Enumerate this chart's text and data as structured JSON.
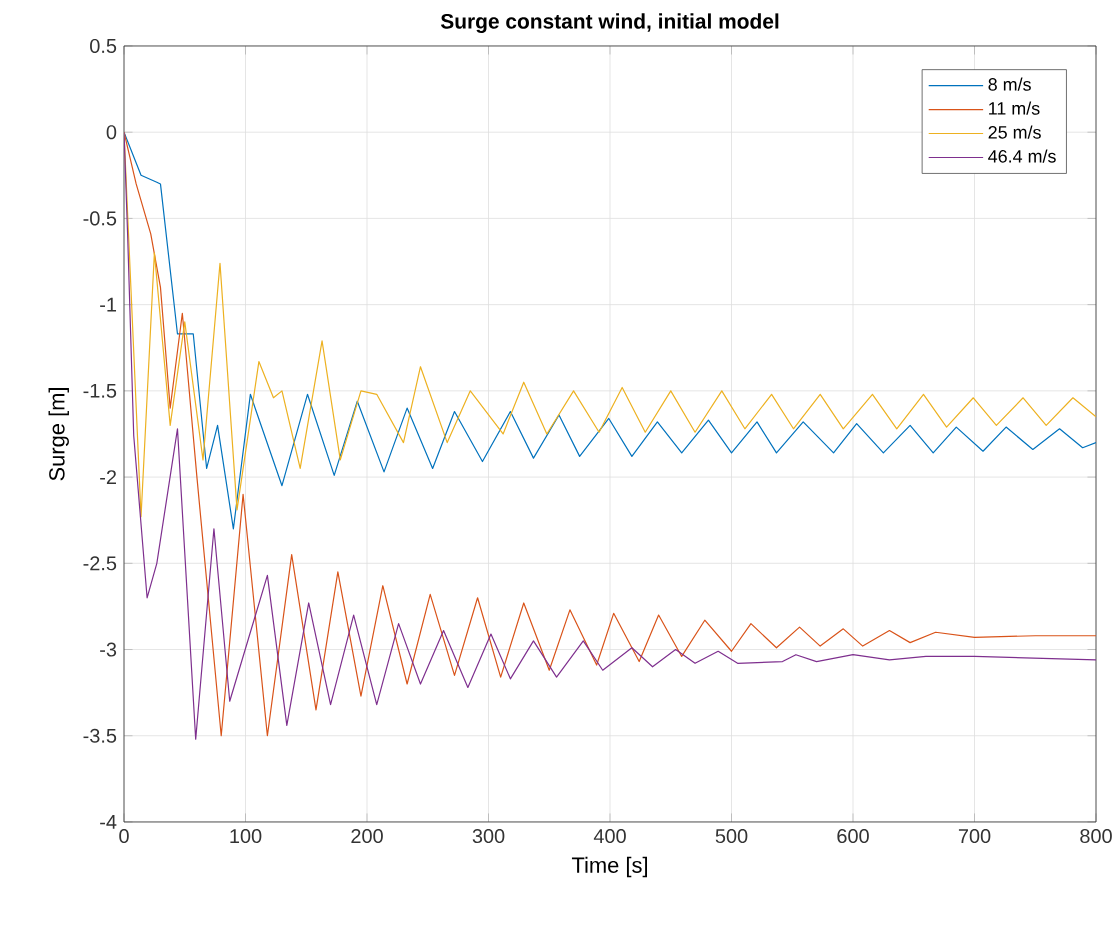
{
  "chart_data": {
    "type": "line",
    "title": "Surge constant wind, initial model",
    "xlabel": "Time [s]",
    "ylabel": "Surge [m]",
    "xlim": [
      0,
      800
    ],
    "ylim": [
      -4,
      0.5
    ],
    "xticks": [
      0,
      100,
      200,
      300,
      400,
      500,
      600,
      700,
      800
    ],
    "yticks": [
      -4,
      -3.5,
      -3,
      -2.5,
      -2,
      -1.5,
      -1,
      -0.5,
      0,
      0.5
    ],
    "grid": true,
    "legend": "top right",
    "line_style": "solid",
    "marker": "none",
    "series": [
      {
        "name": "8 m/s",
        "color": "#0072bd",
        "x": [
          0,
          14,
          27,
          30,
          44,
          57,
          68,
          77,
          90,
          104,
          130,
          151,
          173,
          192,
          214,
          233,
          254,
          272,
          295,
          318,
          337,
          358,
          375,
          399,
          418,
          439,
          459,
          481,
          500,
          521,
          537,
          559,
          584,
          603,
          625,
          647,
          666,
          685,
          707,
          726,
          748,
          770,
          789,
          800
        ],
        "values": [
          0,
          -0.25,
          -0.29,
          -0.3,
          -1.17,
          -1.17,
          -1.95,
          -1.7,
          -2.3,
          -1.52,
          -2.05,
          -1.52,
          -1.99,
          -1.56,
          -1.97,
          -1.6,
          -1.95,
          -1.62,
          -1.91,
          -1.62,
          -1.89,
          -1.64,
          -1.88,
          -1.66,
          -1.88,
          -1.68,
          -1.86,
          -1.67,
          -1.86,
          -1.68,
          -1.86,
          -1.68,
          -1.86,
          -1.69,
          -1.86,
          -1.7,
          -1.86,
          -1.71,
          -1.85,
          -1.71,
          -1.84,
          -1.72,
          -1.83,
          -1.8
        ]
      },
      {
        "name": "11 m/s",
        "color": "#d95319",
        "x": [
          0,
          10,
          22,
          30,
          38,
          48,
          60,
          68,
          80,
          98,
          118,
          138,
          158,
          176,
          195,
          213,
          233,
          252,
          272,
          291,
          310,
          329,
          350,
          367,
          389,
          403,
          424,
          440,
          459,
          478,
          500,
          516,
          537,
          556,
          573,
          592,
          608,
          630,
          647,
          668,
          700,
          750,
          800
        ],
        "values": [
          0,
          -0.3,
          -0.59,
          -0.9,
          -1.6,
          -1.05,
          -2.0,
          -2.6,
          -3.5,
          -2.1,
          -3.5,
          -2.45,
          -3.35,
          -2.55,
          -3.27,
          -2.63,
          -3.2,
          -2.68,
          -3.15,
          -2.7,
          -3.16,
          -2.73,
          -3.12,
          -2.77,
          -3.09,
          -2.79,
          -3.07,
          -2.8,
          -3.04,
          -2.83,
          -3.01,
          -2.85,
          -2.99,
          -2.87,
          -2.98,
          -2.88,
          -2.98,
          -2.89,
          -2.96,
          -2.9,
          -2.93,
          -2.92,
          -2.92
        ]
      },
      {
        "name": "25 m/s",
        "color": "#edb120",
        "x": [
          0,
          14,
          25,
          38,
          50,
          65,
          79,
          93,
          111,
          123,
          130,
          145,
          163,
          178,
          195,
          208,
          230,
          244,
          266,
          285,
          312,
          329,
          348,
          370,
          391,
          410,
          429,
          450,
          470,
          492,
          511,
          533,
          551,
          573,
          592,
          616,
          636,
          658,
          677,
          699,
          718,
          740,
          759,
          781,
          800
        ],
        "values": [
          0,
          -2.23,
          -0.7,
          -1.7,
          -1.1,
          -1.9,
          -0.76,
          -2.19,
          -1.33,
          -1.54,
          -1.5,
          -1.95,
          -1.21,
          -1.9,
          -1.5,
          -1.52,
          -1.8,
          -1.36,
          -1.8,
          -1.5,
          -1.75,
          -1.45,
          -1.75,
          -1.5,
          -1.74,
          -1.48,
          -1.74,
          -1.5,
          -1.74,
          -1.5,
          -1.72,
          -1.52,
          -1.72,
          -1.52,
          -1.72,
          -1.52,
          -1.72,
          -1.52,
          -1.71,
          -1.54,
          -1.7,
          -1.54,
          -1.7,
          -1.54,
          -1.65
        ]
      },
      {
        "name": "46.4 m/s",
        "color": "#7e2f8e",
        "x": [
          0,
          3,
          8,
          19,
          27,
          44,
          59,
          74,
          87,
          118,
          134,
          152,
          170,
          189,
          208,
          226,
          244,
          263,
          283,
          302,
          318,
          337,
          356,
          378,
          394,
          418,
          435,
          454,
          470,
          489,
          505,
          542,
          553,
          570,
          600,
          630,
          660,
          700,
          750,
          800
        ],
        "values": [
          0,
          -0.6,
          -1.76,
          -2.7,
          -2.5,
          -1.72,
          -3.52,
          -2.3,
          -3.3,
          -2.57,
          -3.44,
          -2.73,
          -3.32,
          -2.8,
          -3.32,
          -2.85,
          -3.2,
          -2.89,
          -3.22,
          -2.91,
          -3.17,
          -2.95,
          -3.16,
          -2.95,
          -3.12,
          -2.99,
          -3.1,
          -3.0,
          -3.08,
          -3.01,
          -3.08,
          -3.07,
          -3.03,
          -3.07,
          -3.03,
          -3.06,
          -3.04,
          -3.04,
          -3.05,
          -3.06
        ]
      }
    ]
  }
}
